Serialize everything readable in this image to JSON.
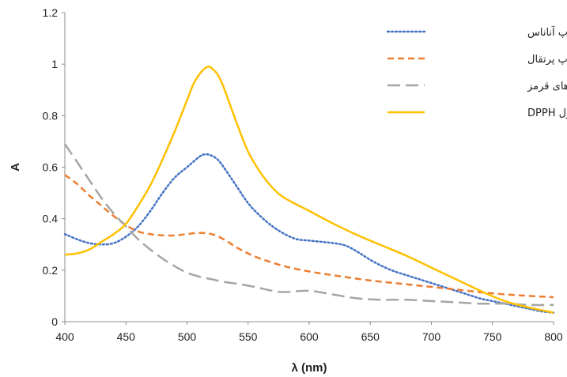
{
  "chart_data": {
    "type": "line",
    "xlabel": "λ (nm)",
    "ylabel": "A",
    "xlim": [
      400,
      800
    ],
    "ylim": [
      0,
      1.2
    ],
    "x_ticks": [
      400,
      450,
      500,
      550,
      600,
      650,
      700,
      750,
      800
    ],
    "y_ticks": [
      0,
      0.2,
      0.4,
      0.6,
      0.8,
      1,
      1.2
    ],
    "x_tick_labels": [
      "400",
      "450",
      "500",
      "550",
      "600",
      "650",
      "700",
      "750",
      "800"
    ],
    "y_tick_labels": [
      "0",
      "0.2",
      "0.4",
      "0.6",
      "0.8",
      "1",
      "1.2"
    ],
    "grid": false,
    "legend_position": "top-right",
    "series": [
      {
        "name": "سان تاپ آناناس",
        "color": "#4472C4",
        "style": "dotted",
        "x": [
          400,
          410,
          420,
          430,
          440,
          450,
          460,
          470,
          480,
          490,
          500,
          510,
          515,
          520,
          525,
          530,
          540,
          550,
          560,
          570,
          580,
          590,
          600,
          610,
          620,
          630,
          640,
          650,
          660,
          670,
          680,
          690,
          700,
          710,
          720,
          730,
          740,
          750,
          760,
          770,
          780,
          790,
          800
        ],
        "y": [
          0.34,
          0.32,
          0.305,
          0.3,
          0.305,
          0.33,
          0.37,
          0.43,
          0.5,
          0.56,
          0.6,
          0.64,
          0.65,
          0.645,
          0.63,
          0.6,
          0.53,
          0.46,
          0.41,
          0.37,
          0.34,
          0.32,
          0.315,
          0.31,
          0.305,
          0.295,
          0.27,
          0.24,
          0.215,
          0.195,
          0.18,
          0.165,
          0.15,
          0.135,
          0.12,
          0.105,
          0.09,
          0.08,
          0.07,
          0.06,
          0.05,
          0.04,
          0.035
        ]
      },
      {
        "name": "سان تاپ پرتقال",
        "color": "#ED7D31",
        "style": "dashed",
        "x": [
          400,
          410,
          420,
          430,
          440,
          450,
          460,
          470,
          480,
          490,
          500,
          510,
          520,
          530,
          540,
          550,
          560,
          580,
          600,
          620,
          650,
          680,
          700,
          720,
          750,
          780,
          800
        ],
        "y": [
          0.57,
          0.535,
          0.49,
          0.45,
          0.41,
          0.375,
          0.35,
          0.34,
          0.335,
          0.335,
          0.34,
          0.345,
          0.34,
          0.32,
          0.29,
          0.265,
          0.245,
          0.215,
          0.195,
          0.18,
          0.16,
          0.145,
          0.135,
          0.125,
          0.11,
          0.1,
          0.095
        ]
      },
      {
        "name": "سان تاپ میوه های قرمز",
        "color": "#A5A5A5",
        "style": "long-dash",
        "x": [
          400,
          410,
          420,
          430,
          440,
          450,
          460,
          470,
          480,
          490,
          500,
          510,
          520,
          530,
          550,
          570,
          580,
          600,
          620,
          640,
          660,
          680,
          700,
          720,
          740,
          760,
          780,
          800
        ],
        "y": [
          0.69,
          0.62,
          0.55,
          0.48,
          0.42,
          0.37,
          0.32,
          0.28,
          0.245,
          0.215,
          0.19,
          0.175,
          0.165,
          0.155,
          0.14,
          0.12,
          0.115,
          0.12,
          0.105,
          0.09,
          0.085,
          0.085,
          0.08,
          0.075,
          0.07,
          0.07,
          0.065,
          0.065
        ]
      },
      {
        "name": "محلول DPPH",
        "color": "#FFC000",
        "style": "solid",
        "x": [
          400,
          410,
          420,
          430,
          440,
          450,
          460,
          470,
          480,
          490,
          500,
          505,
          510,
          515,
          518,
          520,
          525,
          530,
          540,
          550,
          560,
          570,
          580,
          600,
          620,
          640,
          660,
          680,
          700,
          720,
          740,
          760,
          780,
          800
        ],
        "y": [
          0.26,
          0.265,
          0.28,
          0.31,
          0.34,
          0.38,
          0.45,
          0.53,
          0.63,
          0.74,
          0.86,
          0.92,
          0.96,
          0.985,
          0.99,
          0.985,
          0.96,
          0.91,
          0.78,
          0.66,
          0.58,
          0.52,
          0.48,
          0.43,
          0.38,
          0.335,
          0.295,
          0.255,
          0.21,
          0.165,
          0.12,
          0.08,
          0.055,
          0.035
        ]
      }
    ]
  }
}
